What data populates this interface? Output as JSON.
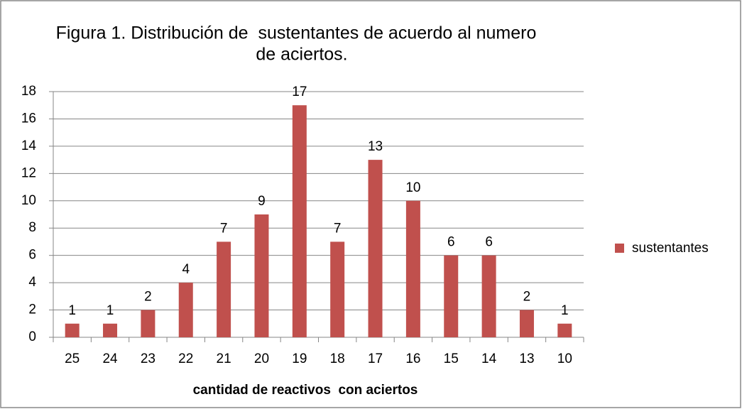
{
  "chart_data": {
    "type": "bar",
    "title": [
      "Figura 1. Distribución de  sustentantes de acuerdo al numero",
      "de aciertos."
    ],
    "x_label": "cantidad de reactivos  con aciertos",
    "categories": [
      "25",
      "24",
      "23",
      "22",
      "21",
      "20",
      "19",
      "18",
      "17",
      "16",
      "15",
      "14",
      "13",
      "10"
    ],
    "series": [
      {
        "name": "sustentantes",
        "color": "#c0504d",
        "values": [
          1,
          1,
          2,
          4,
          7,
          9,
          17,
          7,
          13,
          10,
          6,
          6,
          2,
          1
        ]
      }
    ],
    "ylim": [
      0,
      18
    ],
    "yticks": [
      0,
      2,
      4,
      6,
      8,
      10,
      12,
      14,
      16,
      18
    ],
    "grid": true,
    "legend": "right"
  }
}
